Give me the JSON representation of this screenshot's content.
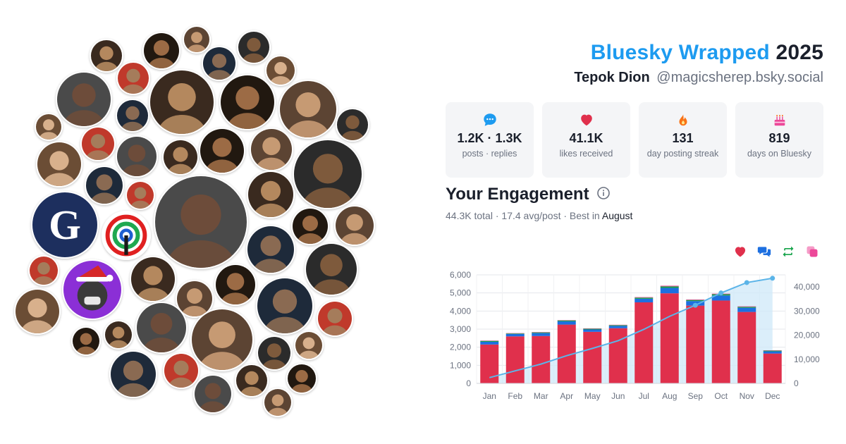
{
  "header": {
    "brand": "Bluesky Wrapped",
    "year": "2025",
    "display_name": "Tepok Dion",
    "handle": "@magicsherep.bsky.social"
  },
  "stats": [
    {
      "icon": "comment-bubble-icon",
      "value": "1.2K · 1.3K",
      "label": "posts · replies",
      "color": "#1d9bf0"
    },
    {
      "icon": "heart-icon",
      "value": "41.1K",
      "label": "likes received",
      "color": "#e0304c"
    },
    {
      "icon": "fire-icon",
      "value": "131",
      "label": "day posting streak",
      "color": "#f97316"
    },
    {
      "icon": "cake-icon",
      "value": "819",
      "label": "days on Bluesky",
      "color": "#ec4899"
    }
  ],
  "engagement": {
    "title": "Your Engagement",
    "total": "44.3K",
    "total_label": "total",
    "avg": "17.4 avg/post",
    "best_prefix": "Best in",
    "best_month": "August"
  },
  "legend": [
    {
      "icon": "heart-icon",
      "color": "#e0304c"
    },
    {
      "icon": "reply-bubbles-icon",
      "color": "#1d6fe0"
    },
    {
      "icon": "repost-icon",
      "color": "#16a34a"
    },
    {
      "icon": "quote-icon",
      "color": "#ec4899"
    }
  ],
  "chart_data": {
    "type": "bar",
    "categories": [
      "Jan",
      "Feb",
      "Mar",
      "Apr",
      "May",
      "Jun",
      "Jul",
      "Aug",
      "Sep",
      "Oct",
      "Nov",
      "Dec"
    ],
    "series": [
      {
        "values": [
          2150,
          2600,
          2620,
          3250,
          2850,
          3050,
          4480,
          4980,
          4300,
          4580,
          3950,
          1650
        ],
        "color": "#e0304c"
      },
      {
        "values": [
          150,
          130,
          160,
          180,
          130,
          130,
          200,
          300,
          250,
          280,
          230,
          120
        ],
        "color": "#1d6fe0"
      },
      {
        "values": [
          50,
          30,
          40,
          50,
          40,
          40,
          60,
          80,
          60,
          70,
          50,
          40
        ],
        "color": "#16a34a"
      },
      {
        "values": [
          20,
          20,
          20,
          20,
          20,
          20,
          30,
          40,
          30,
          30,
          30,
          20
        ],
        "color": "#ec4899"
      }
    ],
    "cumulative": [
      2400,
      5200,
      8000,
      11500,
      14500,
      17700,
      22400,
      27800,
      32400,
      37500,
      41800,
      43600
    ],
    "ylim": [
      0,
      6000
    ],
    "yticks": [
      "0",
      "1,000",
      "2,000",
      "3,000",
      "4,000",
      "5,000",
      "6,000"
    ],
    "y2lim": [
      0,
      45000
    ],
    "y2ticks": [
      "0",
      "10,000",
      "20,000",
      "30,000",
      "40,000"
    ],
    "grid": true,
    "legend": "top-right"
  },
  "colors": {
    "line": "#5bb4e8",
    "area": "#cfe8f8"
  }
}
